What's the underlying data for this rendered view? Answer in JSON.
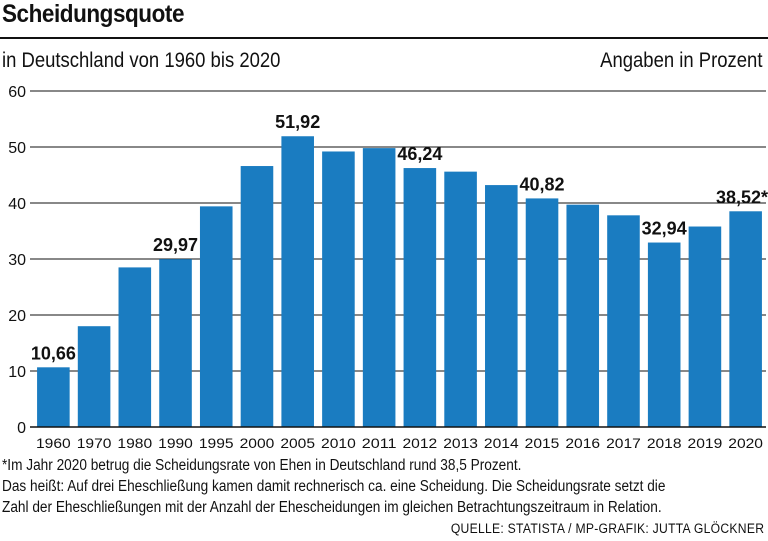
{
  "header": {
    "title": "Scheidungsquote",
    "subtitle": "in Deutschland von 1960 bis 2020",
    "unit_note": "Angaben in Prozent"
  },
  "chart_data": {
    "type": "bar",
    "title": "Scheidungsquote",
    "subtitle": "in Deutschland von 1960 bis 2020",
    "ylabel": "Angaben in Prozent",
    "ylim": [
      0,
      60
    ],
    "yticks": [
      0,
      10,
      20,
      30,
      40,
      50,
      60
    ],
    "grid": true,
    "bar_color": "#1a7cc1",
    "categories": [
      "1960",
      "1970",
      "1980",
      "1990",
      "1995",
      "2000",
      "2005",
      "2010",
      "2011",
      "2012",
      "2013",
      "2014",
      "2015",
      "2016",
      "2017",
      "2018",
      "2019",
      "2020"
    ],
    "values": [
      10.66,
      18.0,
      28.5,
      29.97,
      39.4,
      46.6,
      51.92,
      49.2,
      49.8,
      46.24,
      45.6,
      43.2,
      40.82,
      39.7,
      37.8,
      32.94,
      35.8,
      38.52
    ],
    "data_labels": [
      {
        "index": 0,
        "text": "10,66"
      },
      {
        "index": 3,
        "text": "29,97"
      },
      {
        "index": 6,
        "text": "51,92"
      },
      {
        "index": 9,
        "text": "46,24"
      },
      {
        "index": 12,
        "text": "40,82"
      },
      {
        "index": 15,
        "text": "32,94"
      },
      {
        "index": 17,
        "text": "38,52*"
      }
    ]
  },
  "footnote": {
    "line1": "*Im Jahr 2020 betrug die Scheidungsrate von Ehen in Deutschland rund 38,5 Prozent.",
    "line2": "Das heißt: Auf drei Eheschließung kamen damit rechnerisch ca. eine Scheidung. Die Scheidungsrate setzt die",
    "line3": "Zahl der Eheschließungen mit der Anzahl der Ehescheidungen im gleichen Betrachtungszeitraum in Relation."
  },
  "source": "QUELLE: STATISTA / MP-GRAFIK: JUTTA GLÖCKNER"
}
